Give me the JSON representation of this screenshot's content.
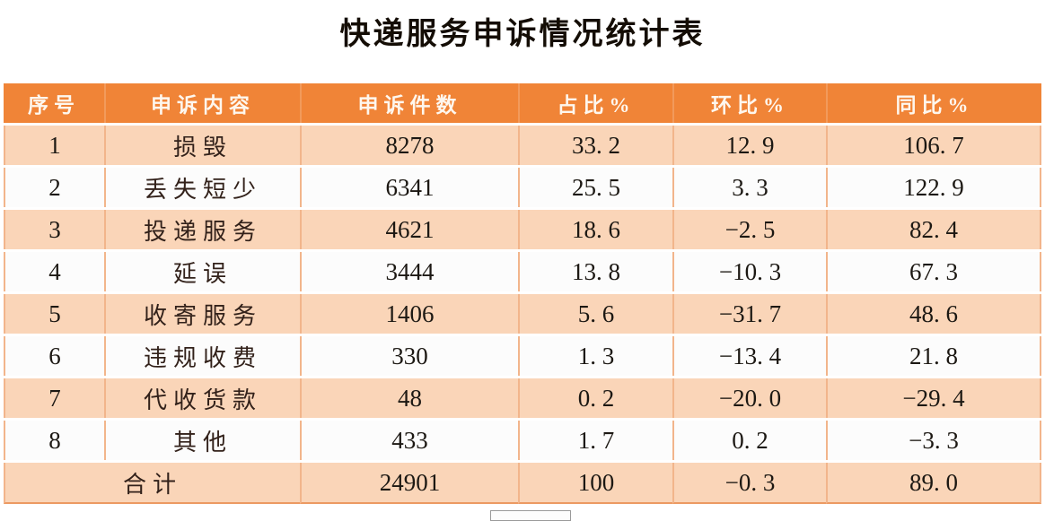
{
  "title": "快递服务申诉情况统计表",
  "table": {
    "columns": [
      "序号",
      "申诉内容",
      "申诉件数",
      "占比%",
      "环比%",
      "同比%"
    ],
    "rows": [
      [
        "1",
        "损毁",
        "8278",
        "33. 2",
        "12. 9",
        "106. 7"
      ],
      [
        "2",
        "丢失短少",
        "6341",
        "25. 5",
        "3. 3",
        "122. 9"
      ],
      [
        "3",
        "投递服务",
        "4621",
        "18. 6",
        "−2. 5",
        "82. 4"
      ],
      [
        "4",
        "延误",
        "3444",
        "13. 8",
        "−10. 3",
        "67. 3"
      ],
      [
        "5",
        "收寄服务",
        "1406",
        "5. 6",
        "−31. 7",
        "48. 6"
      ],
      [
        "6",
        "违规收费",
        "330",
        "1. 3",
        "−13. 4",
        "21. 8"
      ],
      [
        "7",
        "代收货款",
        "48",
        "0. 2",
        "−20. 0",
        "−29. 4"
      ],
      [
        "8",
        "其他",
        "433",
        "1. 7",
        "0. 2",
        "−3. 3"
      ]
    ],
    "total": {
      "label": "合计",
      "count": "24901",
      "share": "100",
      "mom": "−0. 3",
      "yoy": "89. 0"
    }
  },
  "colors": {
    "header_bg": "#F08437",
    "header_text": "#FEF7EE",
    "row_peach": "#FAD5B8",
    "row_white": "#FCFCFC",
    "gridline": "#F2B58B",
    "total_bottom_border": "#EC9A62",
    "title_color": "#140D05",
    "text_dark": "#32211A"
  },
  "chart_data": {
    "type": "table",
    "title": "快递服务申诉情况统计表",
    "columns": [
      "序号",
      "申诉内容",
      "申诉件数",
      "占比%",
      "环比%",
      "同比%"
    ],
    "rows": [
      [
        1,
        "损毁",
        8278,
        33.2,
        12.9,
        106.7
      ],
      [
        2,
        "丢失短少",
        6341,
        25.5,
        3.3,
        122.9
      ],
      [
        3,
        "投递服务",
        4621,
        18.6,
        -2.5,
        82.4
      ],
      [
        4,
        "延误",
        3444,
        13.8,
        -10.3,
        67.3
      ],
      [
        5,
        "收寄服务",
        1406,
        5.6,
        -31.7,
        48.6
      ],
      [
        6,
        "违规收费",
        330,
        1.3,
        -13.4,
        21.8
      ],
      [
        7,
        "代收货款",
        48,
        0.2,
        -20.0,
        -29.4
      ],
      [
        8,
        "其他",
        433,
        1.7,
        0.2,
        -3.3
      ]
    ],
    "total_row": [
      "合计",
      24901,
      100,
      -0.3,
      89.0
    ],
    "layout": {
      "header_style": "orange band, white bold text",
      "body_style": "alternating peach and white rows, light orange gridlines"
    }
  }
}
